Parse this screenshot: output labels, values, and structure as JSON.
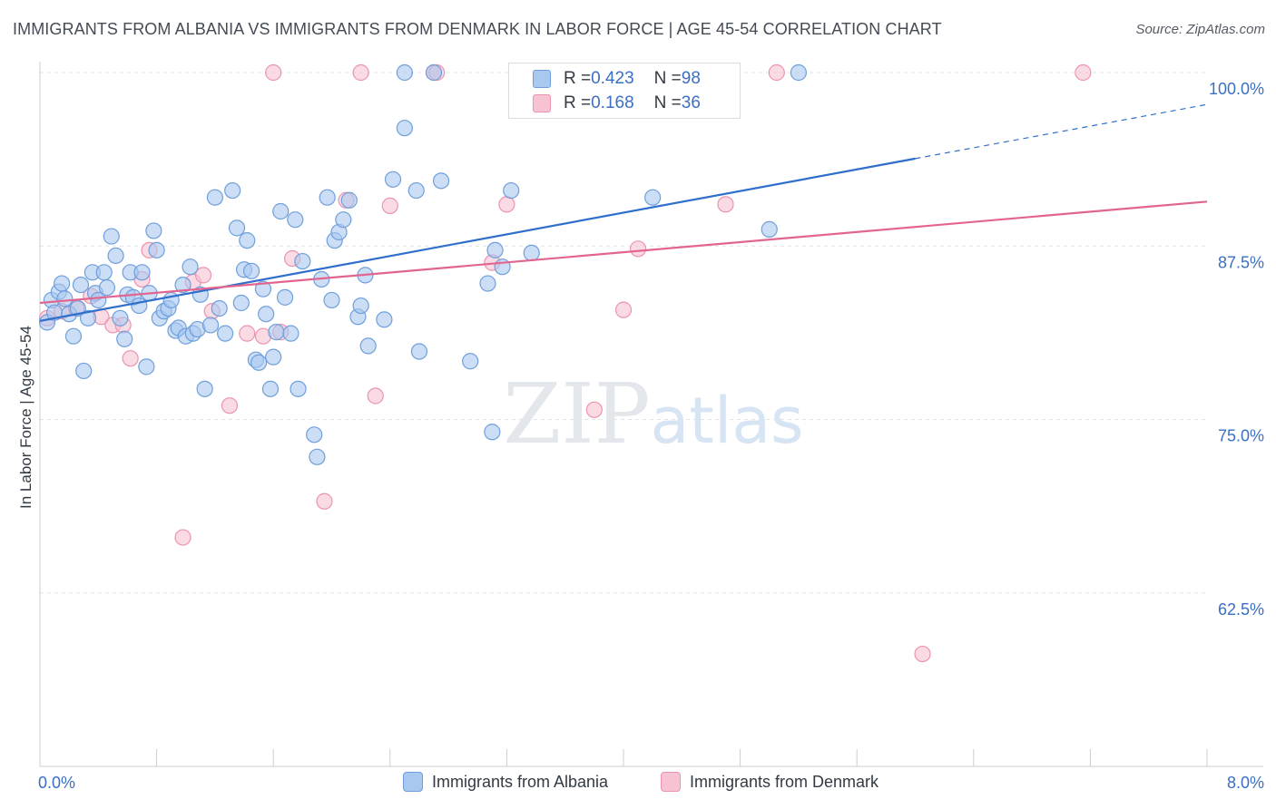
{
  "title": "IMMIGRANTS FROM ALBANIA VS IMMIGRANTS FROM DENMARK IN LABOR FORCE | AGE 45-54 CORRELATION CHART",
  "source": "Source: ZipAtlas.com",
  "watermark": "ZIPatlas",
  "colors": {
    "albania_fill": "#a9c8f0",
    "albania_stroke": "#6f9fdc",
    "albania_line": "#2f6fcb",
    "denmark_fill": "#f7c3d2",
    "denmark_stroke": "#ec93b0",
    "denmark_line": "#e2658f",
    "axis_label": "#3a6fc4"
  },
  "stats": {
    "albania": {
      "r_label": "R = ",
      "r": "0.423",
      "n_label": "N = ",
      "n": "98"
    },
    "denmark": {
      "r_label": "R = ",
      "r": "0.168",
      "n_label": "N = ",
      "n": "36"
    }
  },
  "chart_data": {
    "type": "scatter",
    "ylabel": "In Labor Force | Age 45-54",
    "xlim": [
      0,
      8
    ],
    "ylim": [
      50,
      100
    ],
    "x_tick_labels": [
      {
        "value": 0,
        "label": "0.0%"
      },
      {
        "value": 8,
        "label": "8.0%"
      }
    ],
    "y_tick_labels": [
      {
        "value": 100,
        "label": "100.0%"
      },
      {
        "value": 87.5,
        "label": "87.5%"
      },
      {
        "value": 75,
        "label": "75.0%"
      },
      {
        "value": 62.5,
        "label": "62.5%"
      }
    ],
    "grid": true,
    "legend_placement": "bottom",
    "series": [
      {
        "name": "Immigrants from Albania",
        "trend": {
          "x": [
            0,
            6.0
          ],
          "y": [
            82.1,
            93.8
          ],
          "extend_to_x": 8.0,
          "extend_to_y": 97.7
        },
        "points": [
          [
            0.05,
            82.0
          ],
          [
            0.08,
            83.6
          ],
          [
            0.1,
            82.7
          ],
          [
            0.13,
            84.2
          ],
          [
            0.15,
            84.8
          ],
          [
            0.17,
            83.7
          ],
          [
            0.2,
            82.6
          ],
          [
            0.23,
            81.0
          ],
          [
            0.26,
            83.0
          ],
          [
            0.28,
            84.7
          ],
          [
            0.3,
            78.5
          ],
          [
            0.33,
            82.3
          ],
          [
            0.36,
            85.6
          ],
          [
            0.38,
            84.1
          ],
          [
            0.4,
            83.6
          ],
          [
            0.44,
            85.6
          ],
          [
            0.46,
            84.5
          ],
          [
            0.49,
            88.2
          ],
          [
            0.52,
            86.8
          ],
          [
            0.55,
            82.3
          ],
          [
            0.58,
            80.8
          ],
          [
            0.6,
            84.0
          ],
          [
            0.62,
            85.6
          ],
          [
            0.64,
            83.8
          ],
          [
            0.68,
            83.2
          ],
          [
            0.7,
            85.6
          ],
          [
            0.73,
            78.8
          ],
          [
            0.75,
            84.1
          ],
          [
            0.78,
            88.6
          ],
          [
            0.8,
            87.2
          ],
          [
            0.82,
            82.3
          ],
          [
            0.85,
            82.8
          ],
          [
            0.88,
            83.0
          ],
          [
            0.9,
            83.6
          ],
          [
            0.93,
            81.4
          ],
          [
            0.95,
            81.6
          ],
          [
            0.98,
            84.7
          ],
          [
            1.0,
            81.0
          ],
          [
            1.03,
            86.0
          ],
          [
            1.05,
            81.2
          ],
          [
            1.08,
            81.5
          ],
          [
            1.1,
            84.0
          ],
          [
            1.13,
            77.2
          ],
          [
            1.17,
            81.8
          ],
          [
            1.2,
            91.0
          ],
          [
            1.23,
            83.0
          ],
          [
            1.27,
            81.2
          ],
          [
            1.32,
            91.5
          ],
          [
            1.35,
            88.8
          ],
          [
            1.38,
            83.4
          ],
          [
            1.4,
            85.8
          ],
          [
            1.42,
            87.9
          ],
          [
            1.45,
            85.7
          ],
          [
            1.48,
            79.3
          ],
          [
            1.5,
            79.1
          ],
          [
            1.53,
            84.4
          ],
          [
            1.55,
            82.6
          ],
          [
            1.58,
            77.2
          ],
          [
            1.6,
            79.5
          ],
          [
            1.62,
            81.3
          ],
          [
            1.65,
            90.0
          ],
          [
            1.68,
            83.8
          ],
          [
            1.72,
            81.2
          ],
          [
            1.75,
            89.4
          ],
          [
            1.77,
            77.2
          ],
          [
            1.8,
            86.4
          ],
          [
            1.88,
            73.9
          ],
          [
            1.9,
            72.3
          ],
          [
            1.93,
            85.1
          ],
          [
            1.97,
            91.0
          ],
          [
            2.0,
            83.6
          ],
          [
            2.02,
            87.9
          ],
          [
            2.05,
            88.5
          ],
          [
            2.08,
            89.4
          ],
          [
            2.12,
            90.8
          ],
          [
            2.18,
            82.4
          ],
          [
            2.2,
            83.2
          ],
          [
            2.23,
            85.4
          ],
          [
            2.25,
            80.3
          ],
          [
            2.36,
            82.2
          ],
          [
            2.42,
            92.3
          ],
          [
            2.5,
            96.0
          ],
          [
            2.58,
            91.5
          ],
          [
            2.6,
            79.9
          ],
          [
            2.75,
            92.2
          ],
          [
            2.95,
            79.2
          ],
          [
            3.07,
            84.8
          ],
          [
            3.1,
            74.1
          ],
          [
            3.12,
            87.2
          ],
          [
            3.17,
            86.0
          ],
          [
            3.23,
            91.5
          ],
          [
            3.37,
            87.0
          ],
          [
            4.2,
            91.0
          ],
          [
            5.0,
            88.7
          ],
          [
            2.5,
            100.0
          ],
          [
            5.2,
            100.0
          ],
          [
            2.7,
            100.0
          ],
          [
            3.75,
            100.0
          ]
        ]
      },
      {
        "name": "Immigrants from Denmark",
        "trend": {
          "x": [
            0,
            8.0
          ],
          "y": [
            83.4,
            90.7
          ]
        },
        "points": [
          [
            0.05,
            82.3
          ],
          [
            0.15,
            82.8
          ],
          [
            0.25,
            83.0
          ],
          [
            0.35,
            83.9
          ],
          [
            0.42,
            82.4
          ],
          [
            0.5,
            81.8
          ],
          [
            0.57,
            81.8
          ],
          [
            0.62,
            79.4
          ],
          [
            0.7,
            85.1
          ],
          [
            0.75,
            87.2
          ],
          [
            0.98,
            66.5
          ],
          [
            1.05,
            84.9
          ],
          [
            1.12,
            85.4
          ],
          [
            1.18,
            82.8
          ],
          [
            1.3,
            76.0
          ],
          [
            1.42,
            81.2
          ],
          [
            1.53,
            81.0
          ],
          [
            1.65,
            81.3
          ],
          [
            1.73,
            86.6
          ],
          [
            1.95,
            69.1
          ],
          [
            2.1,
            90.8
          ],
          [
            2.3,
            76.7
          ],
          [
            2.4,
            90.4
          ],
          [
            3.1,
            86.3
          ],
          [
            3.2,
            90.5
          ],
          [
            3.8,
            75.7
          ],
          [
            4.0,
            82.9
          ],
          [
            4.1,
            87.3
          ],
          [
            4.7,
            90.5
          ],
          [
            6.05,
            58.1
          ],
          [
            1.6,
            100.0
          ],
          [
            2.2,
            100.0
          ],
          [
            2.7,
            100.0
          ],
          [
            2.72,
            100.0
          ],
          [
            5.05,
            100.0
          ],
          [
            7.15,
            100.0
          ]
        ]
      }
    ]
  }
}
